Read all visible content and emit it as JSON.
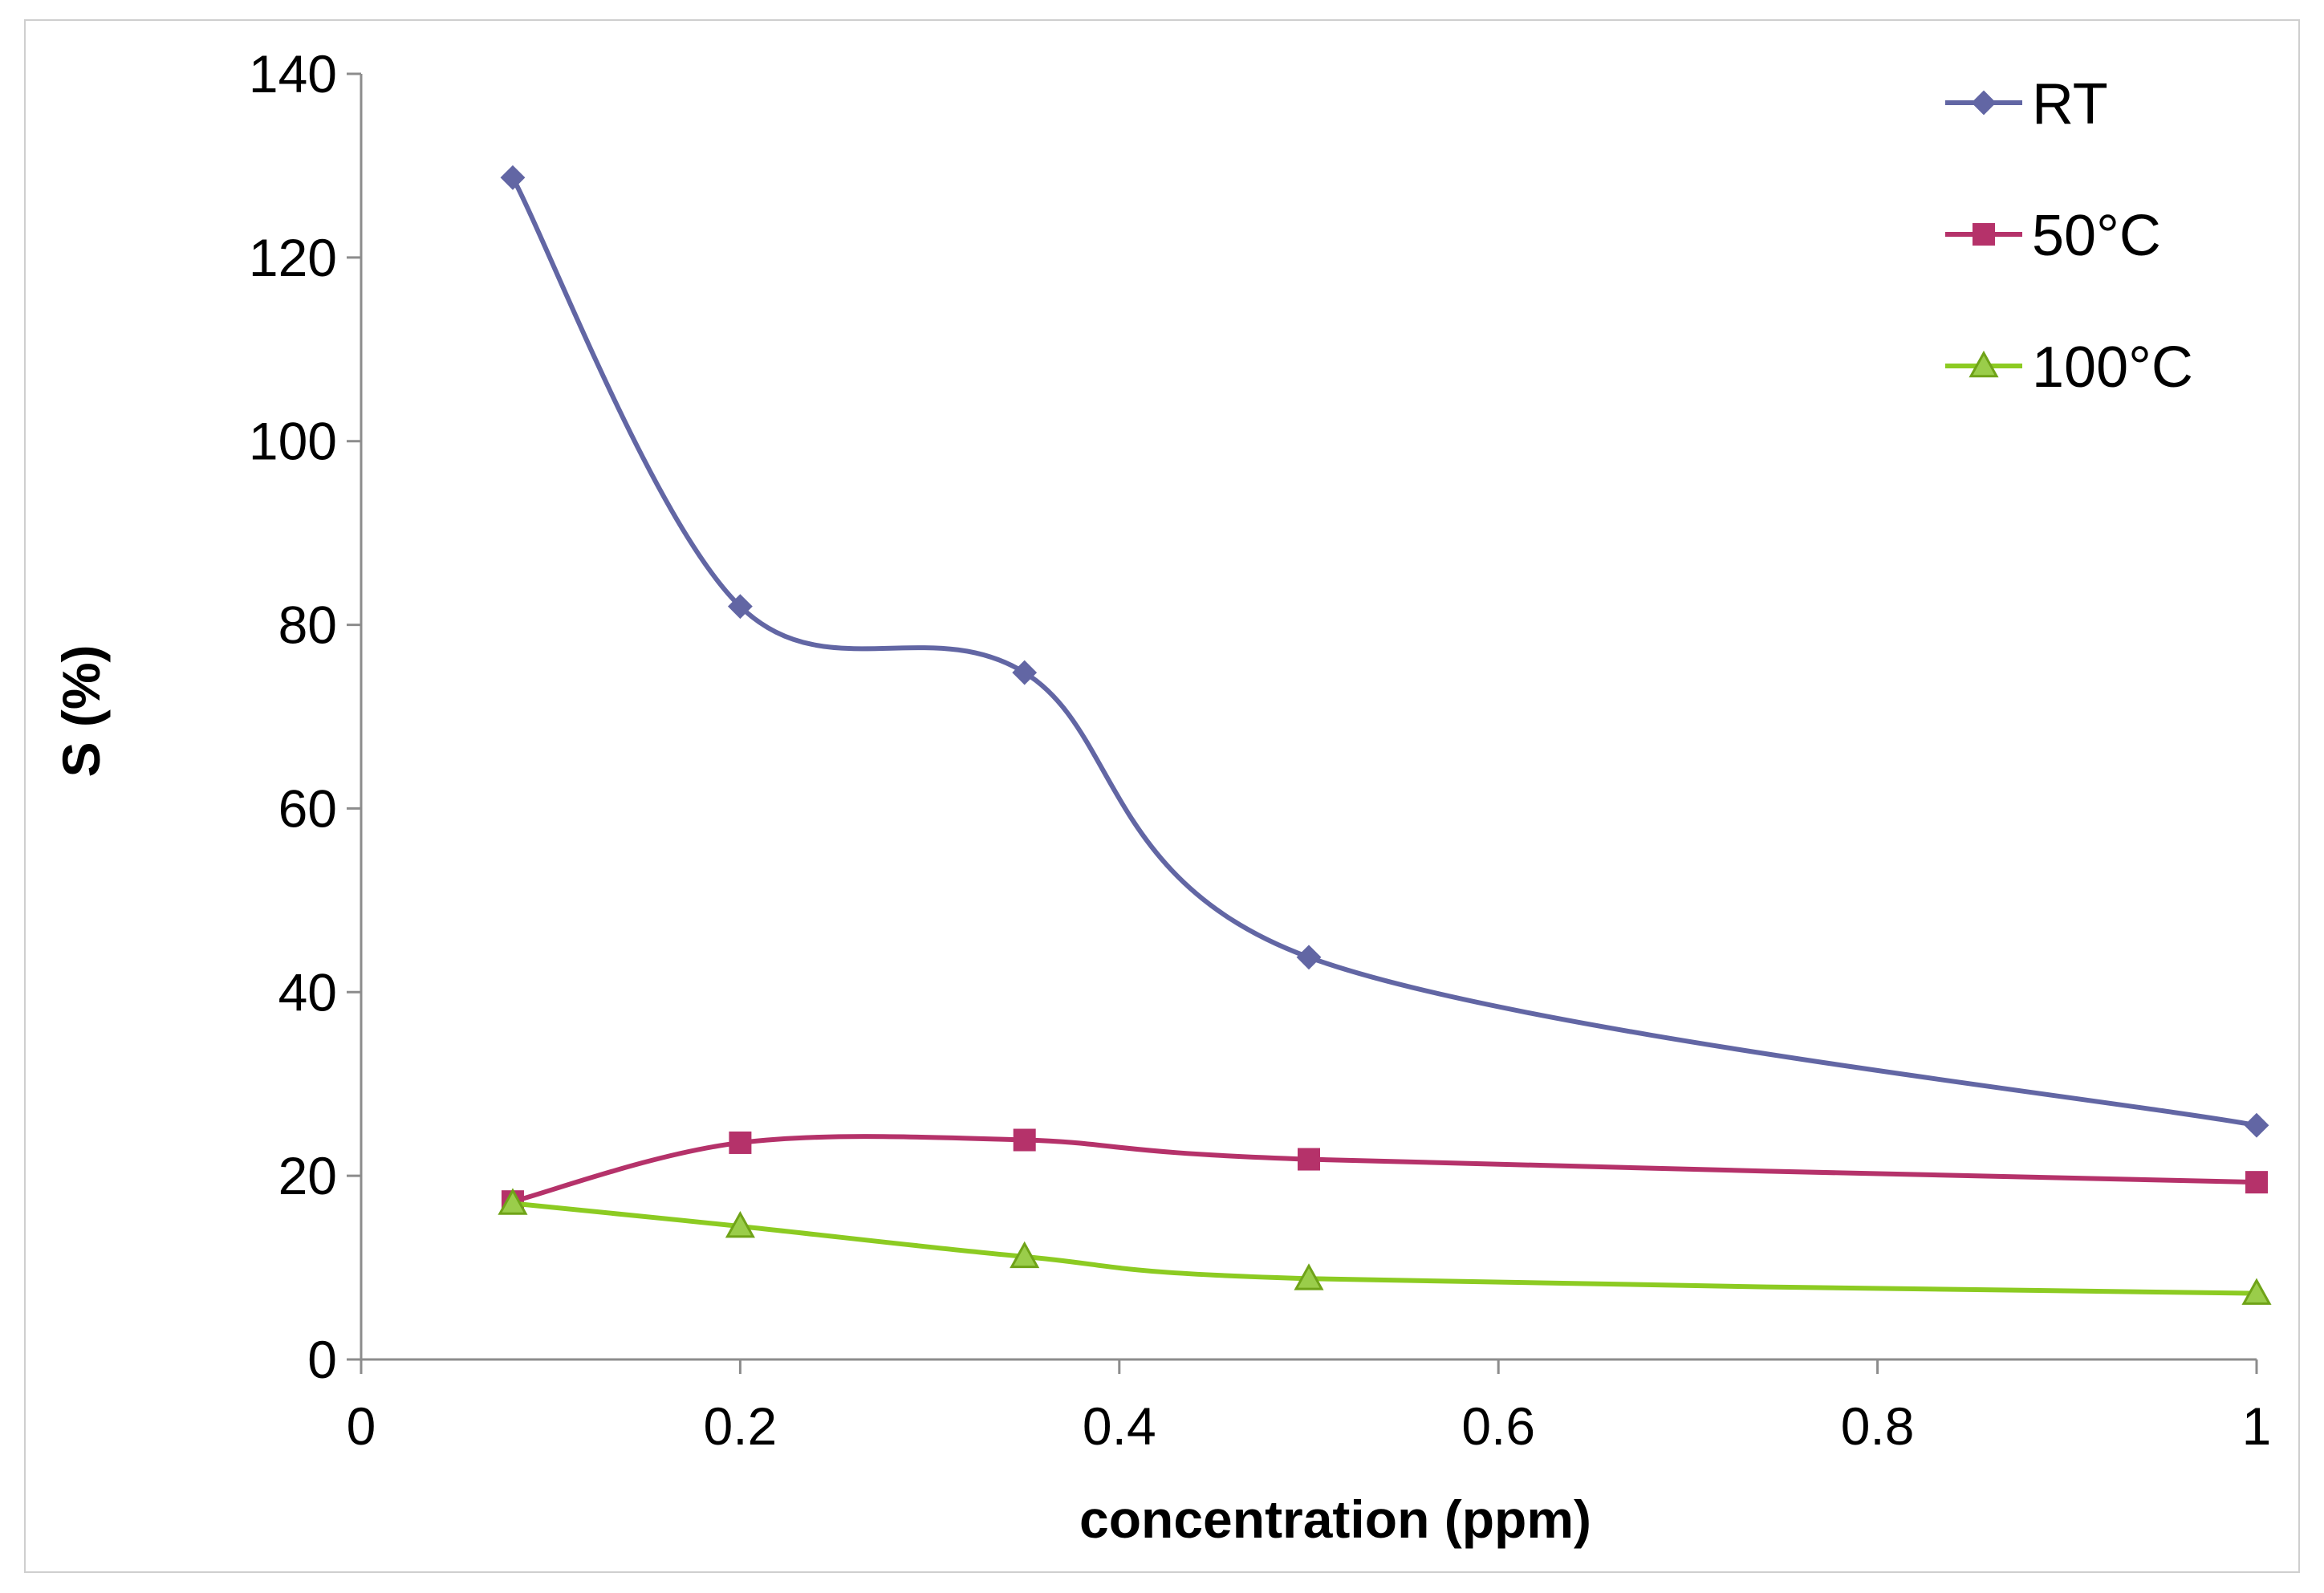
{
  "chart_data": {
    "type": "line",
    "title": "",
    "xlabel": "concentration (ppm)",
    "ylabel": "S (%)",
    "xlim": [
      0,
      1
    ],
    "ylim": [
      0,
      140
    ],
    "x_ticks": [
      "0",
      "0.2",
      "0.4",
      "0.6",
      "0.8",
      "1"
    ],
    "y_ticks": [
      "0",
      "20",
      "40",
      "60",
      "80",
      "100",
      "120",
      "140"
    ],
    "grid": false,
    "legend_position": "top-right",
    "smoothed": true,
    "series": [
      {
        "name": "RT",
        "color": "#6266A4",
        "marker": "diamond",
        "x": [
          0.08,
          0.2,
          0.35,
          0.5,
          1.0
        ],
        "y": [
          128.7,
          82,
          74.8,
          43.8,
          25.5
        ]
      },
      {
        "name": "50°C",
        "color": "#B5326A",
        "marker": "square",
        "x": [
          0.08,
          0.2,
          0.35,
          0.5,
          1.0
        ],
        "y": [
          17.2,
          23.6,
          23.9,
          21.8,
          19.3
        ]
      },
      {
        "name": "100°C",
        "color": "#8CCB22",
        "marker": "triangle",
        "x": [
          0.08,
          0.2,
          0.35,
          0.5,
          1.0
        ],
        "y": [
          17,
          14.5,
          11.2,
          8.8,
          7.2
        ]
      }
    ]
  }
}
